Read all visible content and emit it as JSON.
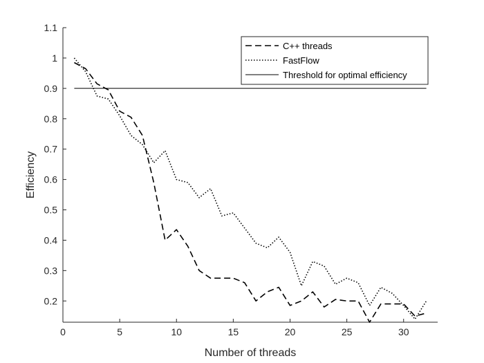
{
  "chart_data": {
    "type": "line",
    "xlabel": "Number of threads",
    "ylabel": "Efficiency",
    "xlim": [
      0,
      33
    ],
    "ylim": [
      0.13,
      1.1
    ],
    "x_ticks": [
      0,
      5,
      10,
      15,
      20,
      25,
      30
    ],
    "y_ticks": [
      0.2,
      0.3,
      0.4,
      0.5,
      0.6,
      0.7,
      0.8,
      0.9,
      1,
      1.1
    ],
    "grid": false,
    "legend_position": "top-right",
    "series": [
      {
        "name": "C++ threads",
        "style": "dashed",
        "color": "#000000",
        "x": [
          1,
          2,
          3,
          4,
          5,
          6,
          7,
          8,
          9,
          10,
          11,
          12,
          13,
          14,
          15,
          16,
          17,
          18,
          19,
          20,
          21,
          22,
          23,
          24,
          25,
          26,
          27,
          28,
          29,
          30,
          31,
          32
        ],
        "values": [
          0.985,
          0.965,
          0.915,
          0.895,
          0.825,
          0.805,
          0.745,
          0.59,
          0.4,
          0.435,
          0.38,
          0.3,
          0.275,
          0.275,
          0.275,
          0.26,
          0.2,
          0.23,
          0.245,
          0.185,
          0.2,
          0.23,
          0.18,
          0.205,
          0.2,
          0.2,
          0.13,
          0.19,
          0.19,
          0.19,
          0.15,
          0.16
        ]
      },
      {
        "name": "FastFlow",
        "style": "dotted",
        "color": "#000000",
        "x": [
          1,
          2,
          3,
          4,
          5,
          6,
          7,
          8,
          9,
          10,
          11,
          12,
          13,
          14,
          15,
          16,
          17,
          18,
          19,
          20,
          21,
          22,
          23,
          24,
          25,
          26,
          27,
          28,
          29,
          30,
          31,
          32
        ],
        "values": [
          1.0,
          0.955,
          0.875,
          0.865,
          0.81,
          0.745,
          0.715,
          0.655,
          0.695,
          0.6,
          0.59,
          0.54,
          0.57,
          0.48,
          0.49,
          0.44,
          0.39,
          0.375,
          0.41,
          0.36,
          0.25,
          0.33,
          0.315,
          0.255,
          0.275,
          0.26,
          0.185,
          0.245,
          0.225,
          0.185,
          0.14,
          0.2
        ]
      },
      {
        "name": "Threshold for optimal efficiency",
        "style": "solid",
        "color": "#000000",
        "x": [
          1,
          32
        ],
        "values": [
          0.9,
          0.9
        ]
      }
    ]
  }
}
